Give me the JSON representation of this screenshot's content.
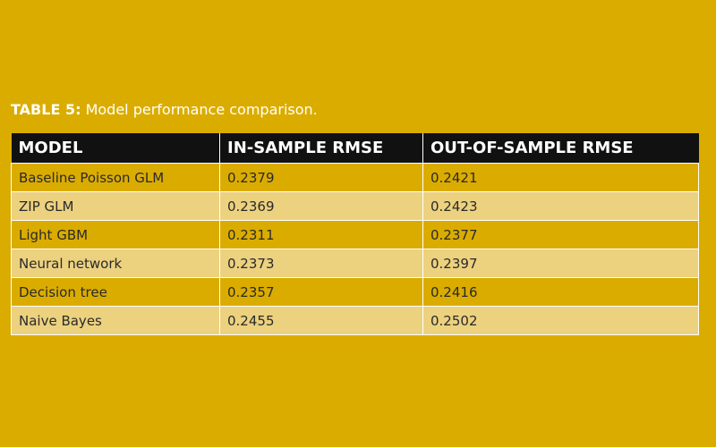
{
  "colors": {
    "background": "#dbac00",
    "header_bg": "#111111",
    "row_dark": "#dbac00",
    "row_light": "#ecd17f",
    "caption_text": "#ffffff"
  },
  "caption": {
    "label": "TABLE 5:",
    "text": " Model performance comparison."
  },
  "table": {
    "headers": [
      "MODEL",
      "IN-SAMPLE RMSE",
      "OUT-OF-SAMPLE RMSE"
    ],
    "rows": [
      [
        "Baseline Poisson GLM",
        "0.2379",
        "0.2421"
      ],
      [
        "ZIP GLM",
        "0.2369",
        "0.2423"
      ],
      [
        "Light GBM",
        "0.2311",
        "0.2377"
      ],
      [
        "Neural network",
        "0.2373",
        "0.2397"
      ],
      [
        "Decision tree",
        "0.2357",
        "0.2416"
      ],
      [
        "Naive Bayes",
        "0.2455",
        "0.2502"
      ]
    ]
  }
}
